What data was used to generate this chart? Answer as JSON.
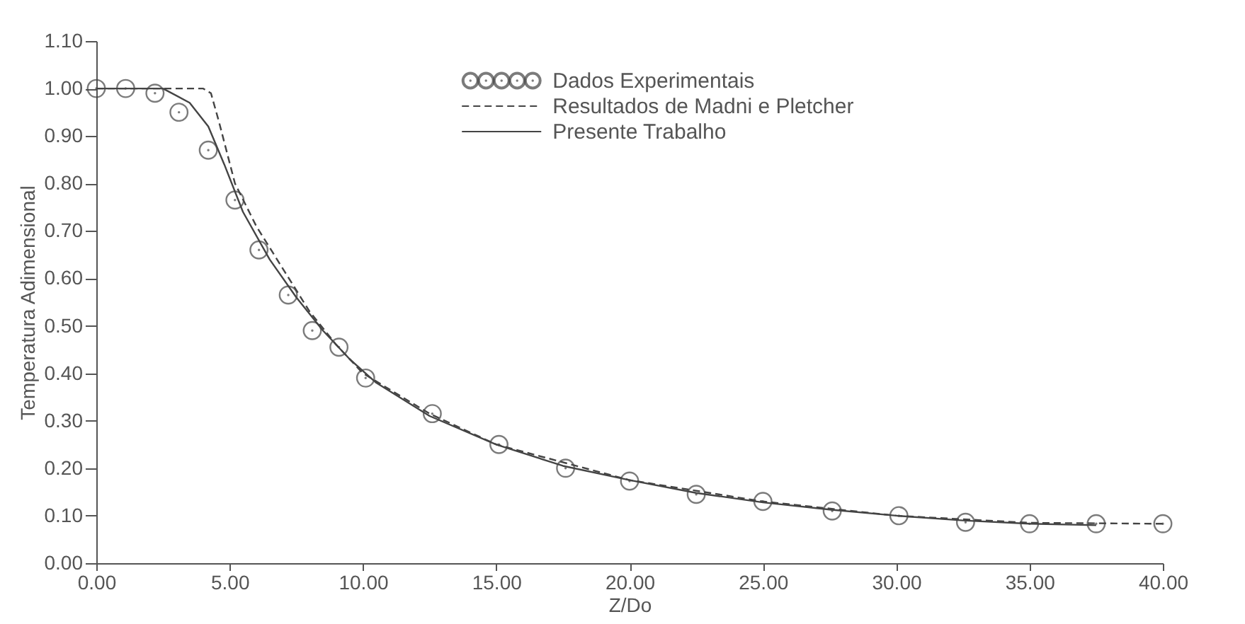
{
  "chart_data": {
    "type": "line",
    "xlabel": "Z/Do",
    "ylabel": "Temperatura Adimensional",
    "xlim": [
      0,
      40
    ],
    "ylim": [
      0,
      1.1
    ],
    "xticks": [
      {
        "value": 0,
        "label": "0.00"
      },
      {
        "value": 5,
        "label": "5.00"
      },
      {
        "value": 10,
        "label": "10.00"
      },
      {
        "value": 15,
        "label": "15.00"
      },
      {
        "value": 20,
        "label": "20.00"
      },
      {
        "value": 25,
        "label": "25.00"
      },
      {
        "value": 30,
        "label": "30.00"
      },
      {
        "value": 35,
        "label": "35.00"
      },
      {
        "value": 40,
        "label": "40.00"
      }
    ],
    "yticks": [
      {
        "value": 0,
        "label": "0.00"
      },
      {
        "value": 0.1,
        "label": "0.10"
      },
      {
        "value": 0.2,
        "label": "0.20"
      },
      {
        "value": 0.3,
        "label": "0.30"
      },
      {
        "value": 0.4,
        "label": "0.40"
      },
      {
        "value": 0.5,
        "label": "0.50"
      },
      {
        "value": 0.6,
        "label": "0.60"
      },
      {
        "value": 0.7,
        "label": "0.70"
      },
      {
        "value": 0.8,
        "label": "0.80"
      },
      {
        "value": 0.9,
        "label": "0.90"
      },
      {
        "value": 1.0,
        "label": "1.00"
      },
      {
        "value": 1.1,
        "label": "1.10"
      }
    ],
    "grid": false,
    "legend": "top right",
    "series": [
      {
        "name": "Dados Experimentais",
        "type": "scatter",
        "marker": "circle",
        "color": "#444444",
        "x": [
          0,
          1.1,
          2.2,
          3.1,
          4.2,
          5.2,
          6.1,
          7.2,
          8.1,
          9.1,
          10.1,
          12.6,
          15.1,
          17.6,
          20.0,
          22.5,
          25.0,
          27.6,
          30.1,
          32.6,
          35.0,
          37.5,
          40.0
        ],
        "values": [
          1.0,
          1.0,
          0.99,
          0.95,
          0.87,
          0.765,
          0.66,
          0.565,
          0.49,
          0.455,
          0.39,
          0.315,
          0.25,
          0.2,
          0.173,
          0.145,
          0.13,
          0.11,
          0.1,
          0.086,
          0.083,
          0.083,
          0.083
        ]
      },
      {
        "name": "Resultados de Madni e Pletcher",
        "line_style": "dashed",
        "color": "#444444",
        "x": [
          0,
          4.0,
          4.3,
          4.6,
          5.2,
          6.0,
          7.0,
          8.0,
          9.0,
          10,
          12.5,
          15,
          20,
          25,
          30,
          35,
          40
        ],
        "values": [
          1.0,
          1.0,
          0.99,
          0.93,
          0.8,
          0.71,
          0.62,
          0.53,
          0.46,
          0.4,
          0.315,
          0.25,
          0.175,
          0.13,
          0.1,
          0.085,
          0.083
        ]
      },
      {
        "name": "Presente Trabalho",
        "line_style": "solid",
        "color": "#444444",
        "x": [
          0,
          2.5,
          3.5,
          4.2,
          4.8,
          5.5,
          6.5,
          7.5,
          8.5,
          9.5,
          10.5,
          12.5,
          15,
          17.5,
          20,
          22.5,
          25,
          27.5,
          30,
          32.5,
          35,
          37.5
        ],
        "values": [
          1.0,
          1.0,
          0.97,
          0.92,
          0.84,
          0.74,
          0.64,
          0.56,
          0.49,
          0.43,
          0.38,
          0.31,
          0.25,
          0.205,
          0.175,
          0.148,
          0.128,
          0.113,
          0.1,
          0.09,
          0.083,
          0.08
        ]
      }
    ]
  }
}
